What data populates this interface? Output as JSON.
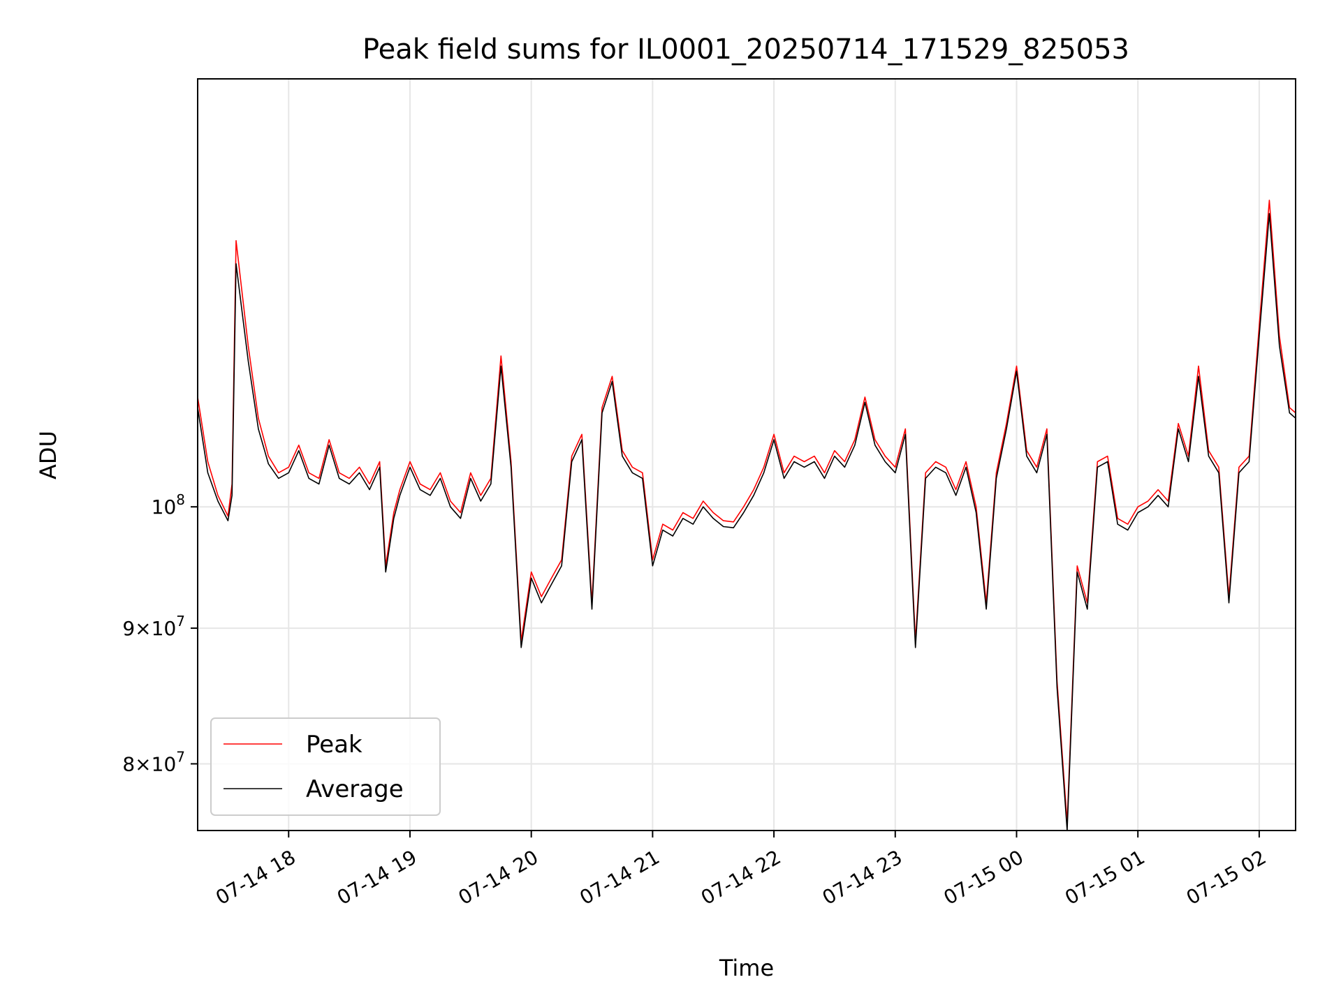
{
  "chart_data": {
    "type": "line",
    "title": "Peak field sums for IL0001_20250714_171529_825053",
    "xlabel": "Time",
    "ylabel": "ADU",
    "yscale": "log",
    "ylim": [
      75500000,
      145000000
    ],
    "xlim": [
      "07-14 17:15",
      "07-15 02:18"
    ],
    "x_ticks": [
      "07-14 18",
      "07-14 19",
      "07-14 20",
      "07-14 21",
      "07-14 22",
      "07-14 23",
      "07-15 00",
      "07-15 01",
      "07-15 02"
    ],
    "y_ticks": [
      {
        "value": 80000000,
        "mantissa": "8",
        "base": "10",
        "exp": "7"
      },
      {
        "value": 90000000,
        "mantissa": "9",
        "base": "10",
        "exp": "7"
      },
      {
        "value": 100000000,
        "mantissa": "",
        "base": "10",
        "exp": "8"
      }
    ],
    "grid": true,
    "legend_position": "lower-left",
    "x": [
      "07-14 17:15",
      "07-14 17:20",
      "07-14 17:25",
      "07-14 17:30",
      "07-14 17:32",
      "07-14 17:34",
      "07-14 17:40",
      "07-14 17:45",
      "07-14 17:50",
      "07-14 17:55",
      "07-14 18:00",
      "07-14 18:05",
      "07-14 18:10",
      "07-14 18:15",
      "07-14 18:20",
      "07-14 18:25",
      "07-14 18:30",
      "07-14 18:35",
      "07-14 18:40",
      "07-14 18:45",
      "07-14 18:48",
      "07-14 18:52",
      "07-14 18:55",
      "07-14 19:00",
      "07-14 19:05",
      "07-14 19:10",
      "07-14 19:15",
      "07-14 19:20",
      "07-14 19:25",
      "07-14 19:30",
      "07-14 19:35",
      "07-14 19:40",
      "07-14 19:45",
      "07-14 19:50",
      "07-14 19:55",
      "07-14 20:00",
      "07-14 20:05",
      "07-14 20:10",
      "07-14 20:15",
      "07-14 20:20",
      "07-14 20:25",
      "07-14 20:30",
      "07-14 20:35",
      "07-14 20:40",
      "07-14 20:45",
      "07-14 20:50",
      "07-14 20:55",
      "07-14 21:00",
      "07-14 21:05",
      "07-14 21:10",
      "07-14 21:15",
      "07-14 21:20",
      "07-14 21:25",
      "07-14 21:30",
      "07-14 21:35",
      "07-14 21:40",
      "07-14 21:45",
      "07-14 21:50",
      "07-14 21:55",
      "07-14 22:00",
      "07-14 22:05",
      "07-14 22:10",
      "07-14 22:15",
      "07-14 22:20",
      "07-14 22:25",
      "07-14 22:30",
      "07-14 22:35",
      "07-14 22:40",
      "07-14 22:45",
      "07-14 22:50",
      "07-14 22:55",
      "07-14 23:00",
      "07-14 23:05",
      "07-14 23:10",
      "07-14 23:15",
      "07-14 23:20",
      "07-14 23:25",
      "07-14 23:30",
      "07-14 23:35",
      "07-14 23:40",
      "07-14 23:45",
      "07-14 23:50",
      "07-14 23:55",
      "07-15 00:00",
      "07-15 00:05",
      "07-15 00:10",
      "07-15 00:15",
      "07-15 00:20",
      "07-15 00:25",
      "07-15 00:30",
      "07-15 00:35",
      "07-15 00:40",
      "07-15 00:45",
      "07-15 00:50",
      "07-15 00:55",
      "07-15 01:00",
      "07-15 01:05",
      "07-15 01:10",
      "07-15 01:15",
      "07-15 01:20",
      "07-15 01:25",
      "07-15 01:30",
      "07-15 01:35",
      "07-15 01:40",
      "07-15 01:45",
      "07-15 01:50",
      "07-15 01:55",
      "07-15 02:00",
      "07-15 02:05",
      "07-15 02:10",
      "07-15 02:15",
      "07-15 02:18"
    ],
    "series": [
      {
        "name": "Peak",
        "color": "#ff0000",
        "values": [
          110000000,
          104000000,
          101000000,
          99200000,
          102000000,
          126000000,
          115000000,
          108000000,
          104500000,
          103000000,
          103500000,
          105500000,
          103000000,
          102500000,
          106000000,
          103000000,
          102500000,
          103500000,
          102000000,
          104000000,
          95000000,
          99500000,
          101500000,
          104000000,
          102000000,
          101500000,
          103000000,
          100500000,
          99500000,
          103000000,
          101000000,
          102500000,
          114000000,
          104000000,
          89000000,
          94500000,
          92500000,
          94000000,
          95500000,
          104500000,
          106500000,
          92000000,
          109000000,
          112000000,
          105000000,
          103500000,
          103000000,
          95500000,
          98500000,
          98000000,
          99500000,
          99000000,
          100500000,
          99500000,
          98800000,
          98700000,
          100000000,
          101500000,
          103500000,
          106500000,
          103000000,
          104500000,
          104000000,
          104500000,
          103000000,
          105000000,
          104000000,
          106000000,
          110000000,
          106000000,
          104500000,
          103500000,
          107000000,
          89000000,
          103000000,
          104000000,
          103500000,
          101500000,
          104000000,
          100000000,
          92000000,
          103000000,
          107500000,
          113000000,
          105000000,
          103500000,
          107000000,
          86000000,
          76000000,
          95000000,
          92000000,
          104000000,
          104500000,
          99000000,
          98500000,
          100000000,
          100500000,
          101500000,
          100500000,
          107500000,
          104500000,
          113000000,
          105000000,
          103500000,
          92500000,
          103500000,
          104500000,
          117000000,
          130500000,
          116000000,
          109000000,
          108500000
        ]
      },
      {
        "name": "Average",
        "color": "#000000",
        "values": [
          109000000,
          103000000,
          100500000,
          98800000,
          101000000,
          123500000,
          113500000,
          107000000,
          103800000,
          102500000,
          103000000,
          105000000,
          102500000,
          102000000,
          105500000,
          102500000,
          102000000,
          103000000,
          101500000,
          103500000,
          94500000,
          99000000,
          101000000,
          103500000,
          101500000,
          101000000,
          102500000,
          100000000,
          99000000,
          102500000,
          100500000,
          102000000,
          113000000,
          103500000,
          88500000,
          94000000,
          92000000,
          93500000,
          95000000,
          104000000,
          106000000,
          91500000,
          108500000,
          111500000,
          104500000,
          103000000,
          102500000,
          95000000,
          98000000,
          97500000,
          99000000,
          98500000,
          100000000,
          99000000,
          98300000,
          98200000,
          99500000,
          101000000,
          103000000,
          106000000,
          102500000,
          104000000,
          103500000,
          104000000,
          102500000,
          104500000,
          103500000,
          105500000,
          109500000,
          105500000,
          104000000,
          103000000,
          106500000,
          88500000,
          102500000,
          103500000,
          103000000,
          101000000,
          103500000,
          99500000,
          91500000,
          102500000,
          107000000,
          112500000,
          104500000,
          103000000,
          106500000,
          85500000,
          75500000,
          94500000,
          91500000,
          103500000,
          104000000,
          98500000,
          98000000,
          99500000,
          100000000,
          101000000,
          100000000,
          107000000,
          104000000,
          112000000,
          104500000,
          103000000,
          92000000,
          103000000,
          104000000,
          116000000,
          129000000,
          115000000,
          108500000,
          108000000
        ]
      }
    ]
  }
}
